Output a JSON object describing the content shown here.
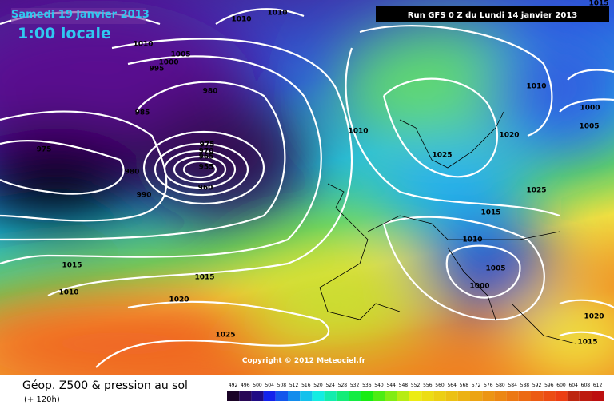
{
  "header": {
    "date": "Samedi 19 janvier 2013",
    "time": "1:00 locale",
    "run": "Run GFS 0 Z du Lundi 14 janvier 2013"
  },
  "isobar_labels": [
    1010,
    1010,
    1010,
    1005,
    1000,
    995,
    980,
    985,
    975,
    980,
    990,
    975,
    970,
    965,
    955,
    960,
    1010,
    1025,
    1020,
    1010,
    1000,
    1005,
    1025,
    1015,
    1010,
    1005,
    1000,
    1015,
    1010,
    1015,
    1020,
    1025,
    1020,
    1015,
    1015
  ],
  "copyright": "Copyright © 2012 Meteociel.fr",
  "footer": {
    "title": "Géop. Z500 & pression au sol",
    "lead": "(+ 120h)"
  },
  "scale": {
    "labels": [
      492,
      496,
      500,
      504,
      508,
      512,
      516,
      520,
      524,
      528,
      532,
      536,
      540,
      544,
      548,
      552,
      556,
      560,
      564,
      568,
      572,
      576,
      580,
      584,
      588,
      592,
      596,
      600,
      604,
      608,
      612
    ]
  }
}
